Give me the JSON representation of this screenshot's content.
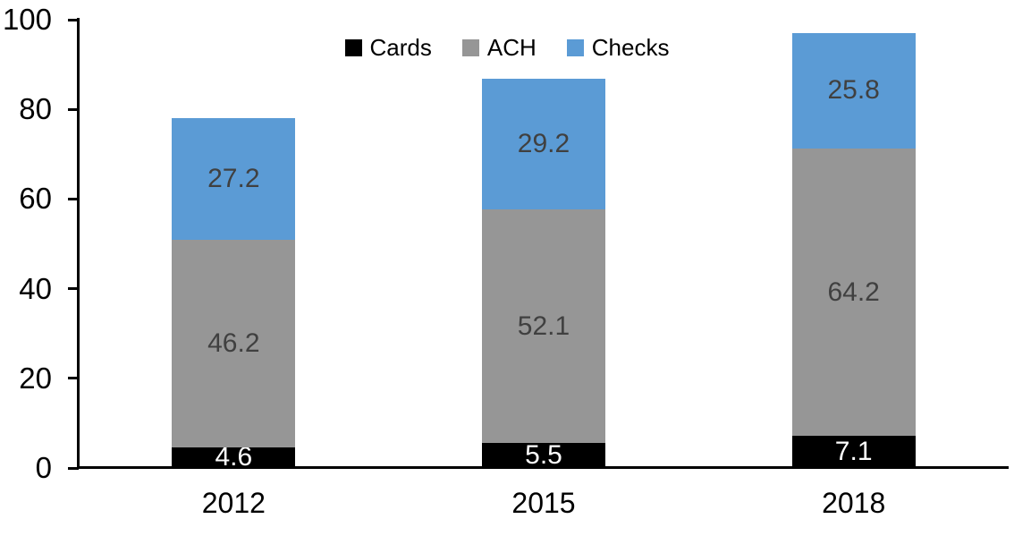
{
  "chart_data": {
    "type": "bar",
    "stacked": true,
    "title": "",
    "xlabel": "",
    "ylabel": "",
    "categories": [
      "2012",
      "2015",
      "2018"
    ],
    "series": [
      {
        "name": "Cards",
        "color": "#000000",
        "label_color": "#ffffff",
        "values": [
          4.6,
          5.5,
          7.1
        ]
      },
      {
        "name": "ACH",
        "color": "#969696",
        "label_color": "#404040",
        "values": [
          46.2,
          52.1,
          64.2
        ]
      },
      {
        "name": "Checks",
        "color": "#5b9bd5",
        "label_color": "#404040",
        "values": [
          27.2,
          29.2,
          25.8
        ]
      }
    ],
    "ylim": [
      0,
      100
    ],
    "yticks": [
      0,
      20,
      40,
      60,
      80,
      100
    ],
    "grid": false,
    "legend_position": "top-center",
    "axis_color": "#000000",
    "background_color": "#ffffff"
  }
}
